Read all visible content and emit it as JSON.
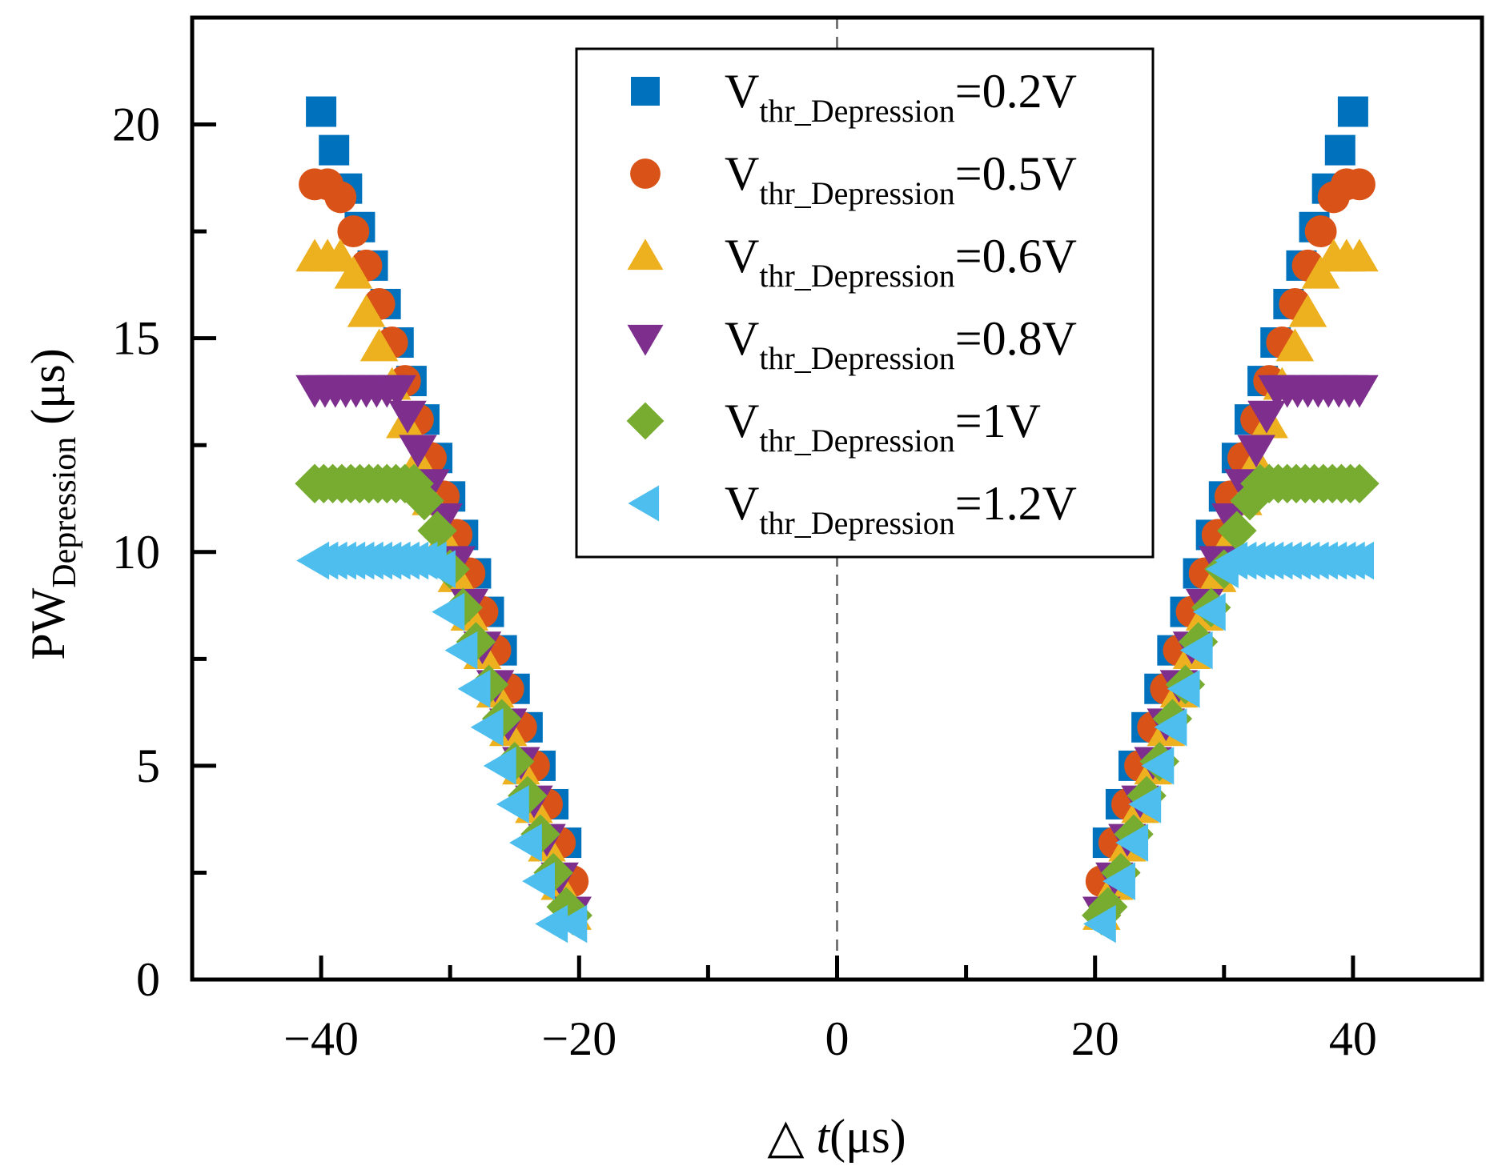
{
  "chart_data": {
    "type": "scatter",
    "title": "",
    "xlabel": "△ t(μs)",
    "xlabel_parts": {
      "prefix": "△ ",
      "italic": "t",
      "suffix": "(μs)"
    },
    "ylabel": "PW_Depression (μs)",
    "ylabel_parts": {
      "main": "PW",
      "sub": "Depression",
      "unit": " (μs)"
    },
    "xlim": [
      -50,
      50
    ],
    "ylim": [
      0,
      22.5
    ],
    "xticks": [
      -40,
      -20,
      0,
      20,
      40
    ],
    "xtick_labels": [
      "−40",
      "−20",
      "0",
      "20",
      "40"
    ],
    "yticks": [
      0,
      5,
      10,
      15,
      20
    ],
    "ytick_labels": [
      "0",
      "5",
      "10",
      "15",
      "20"
    ],
    "grid": false,
    "vline_x": 0,
    "legend_position": "top-center",
    "series": [
      {
        "name": "V_thr_Depression=0.2V",
        "label_main": "V",
        "label_sub": "thr_Depression",
        "label_value": "=0.2V",
        "marker": "square",
        "color": "#0072BD",
        "saturation": 20.3,
        "x": [
          -40,
          -39,
          -38,
          -37,
          -36,
          -35,
          -34,
          -33,
          -32,
          -31,
          -30,
          -29,
          -28,
          -27,
          -26,
          -25,
          -24,
          -23,
          -22,
          -21,
          21,
          22,
          23,
          24,
          25,
          26,
          27,
          28,
          29,
          30,
          31,
          32,
          33,
          34,
          35,
          36,
          37,
          38,
          39,
          40
        ],
        "y": [
          20.3,
          19.4,
          18.5,
          17.6,
          16.7,
          15.8,
          14.9,
          14.0,
          13.1,
          12.2,
          11.3,
          10.4,
          9.5,
          8.6,
          7.7,
          6.8,
          5.9,
          5.0,
          4.1,
          3.2,
          3.2,
          4.1,
          5.0,
          5.9,
          6.8,
          7.7,
          8.6,
          9.5,
          10.4,
          11.3,
          12.2,
          13.1,
          14.0,
          14.9,
          15.8,
          16.7,
          17.6,
          18.5,
          19.4,
          20.3
        ]
      },
      {
        "name": "V_thr_Depression=0.5V",
        "label_main": "V",
        "label_sub": "thr_Depression",
        "label_value": "=0.5V",
        "marker": "circle",
        "color": "#D95319",
        "saturation": 18.6,
        "x": [
          -40.5,
          -39.5,
          -38.5,
          -37.5,
          -36.5,
          -35.5,
          -34.5,
          -33.5,
          -32.5,
          -31.5,
          -30.5,
          -29.5,
          -28.5,
          -27.5,
          -26.5,
          -25.5,
          -24.5,
          -23.5,
          -22.5,
          -21.5,
          -20.5,
          20.5,
          21.5,
          22.5,
          23.5,
          24.5,
          25.5,
          26.5,
          27.5,
          28.5,
          29.5,
          30.5,
          31.5,
          32.5,
          33.5,
          34.5,
          35.5,
          36.5,
          37.5,
          38.5,
          39.5,
          40.5
        ],
        "y": [
          18.6,
          18.6,
          18.3,
          17.5,
          16.7,
          15.8,
          14.9,
          14.0,
          13.1,
          12.2,
          11.3,
          10.4,
          9.5,
          8.6,
          7.7,
          6.8,
          5.9,
          5.0,
          4.1,
          3.2,
          2.3,
          2.3,
          3.2,
          4.1,
          5.0,
          5.9,
          6.8,
          7.7,
          8.6,
          9.5,
          10.4,
          11.3,
          12.2,
          13.1,
          14.0,
          14.9,
          15.8,
          16.7,
          17.5,
          18.3,
          18.6,
          18.6
        ]
      },
      {
        "name": "V_thr_Depression=0.6V",
        "label_main": "V",
        "label_sub": "thr_Depression",
        "label_value": "=0.6V",
        "marker": "triangle-up",
        "color": "#EDB120",
        "saturation": 16.9,
        "x": [
          -40.5,
          -39.5,
          -38.5,
          -37.5,
          -36.5,
          -35.5,
          -34.5,
          -33.5,
          -32.5,
          -31.5,
          -30.5,
          -29.5,
          -28.5,
          -27.5,
          -26.5,
          -25.5,
          -24.5,
          -23.5,
          -22.5,
          -21.5,
          -20.5,
          20.5,
          21.5,
          22.5,
          23.5,
          24.5,
          25.5,
          26.5,
          27.5,
          28.5,
          29.5,
          30.5,
          31.5,
          32.5,
          33.5,
          34.5,
          35.5,
          36.5,
          37.5,
          38.5,
          39.5,
          40.5
        ],
        "y": [
          16.9,
          16.9,
          16.9,
          16.5,
          15.6,
          14.8,
          13.9,
          13.0,
          12.1,
          11.2,
          10.3,
          9.4,
          8.5,
          7.6,
          6.7,
          5.8,
          4.9,
          4.0,
          3.1,
          2.2,
          1.5,
          1.5,
          2.2,
          3.1,
          4.0,
          4.9,
          5.8,
          6.7,
          7.6,
          8.5,
          9.4,
          10.3,
          11.2,
          12.1,
          13.0,
          13.9,
          14.8,
          15.6,
          16.5,
          16.9,
          16.9,
          16.9
        ]
      },
      {
        "name": "V_thr_Depression=0.8V",
        "label_main": "V",
        "label_sub": "thr_Depression",
        "label_value": "=0.8V",
        "marker": "triangle-down",
        "color": "#7E2F8E",
        "saturation": 13.8,
        "x": [
          -40.5,
          -39.7,
          -38.9,
          -38.1,
          -37.3,
          -36.5,
          -35.7,
          -34.9,
          -34.1,
          -33.3,
          -32.5,
          -31.5,
          -30.5,
          -29.5,
          -28.5,
          -27.5,
          -26.5,
          -25.5,
          -24.5,
          -23.5,
          -22.5,
          -21.5,
          -20.5,
          20.5,
          21.5,
          22.5,
          23.5,
          24.5,
          25.5,
          26.5,
          27.5,
          28.5,
          29.5,
          30.5,
          31.5,
          32.5,
          33.3,
          34.1,
          34.9,
          35.7,
          36.5,
          37.3,
          38.1,
          38.9,
          39.7,
          40.5
        ],
        "y": [
          13.8,
          13.8,
          13.8,
          13.8,
          13.8,
          13.8,
          13.8,
          13.8,
          13.8,
          13.2,
          12.4,
          11.6,
          10.8,
          9.8,
          8.8,
          7.8,
          6.9,
          6.0,
          5.1,
          4.2,
          3.3,
          2.4,
          1.6,
          1.6,
          2.4,
          3.3,
          4.2,
          5.1,
          6.0,
          6.9,
          7.8,
          8.8,
          9.8,
          10.8,
          11.6,
          12.4,
          13.2,
          13.8,
          13.8,
          13.8,
          13.8,
          13.8,
          13.8,
          13.8,
          13.8,
          13.8
        ]
      },
      {
        "name": "V_thr_Depression=1V",
        "label_main": "V",
        "label_sub": "thr_Depression",
        "label_value": "=1V",
        "marker": "diamond",
        "color": "#77AC30",
        "saturation": 11.6,
        "x": [
          -40.5,
          -39.8,
          -39.1,
          -38.4,
          -37.7,
          -37.0,
          -36.3,
          -35.6,
          -34.9,
          -34.2,
          -33.5,
          -32.8,
          -32.0,
          -31.0,
          -30.0,
          -29.0,
          -28.0,
          -27.0,
          -26.0,
          -25.0,
          -24.0,
          -23.0,
          -22.0,
          -21.0,
          -20.5,
          20.5,
          21.0,
          22.0,
          23.0,
          24.0,
          25.0,
          26.0,
          27.0,
          28.0,
          29.0,
          30.0,
          31.0,
          32.0,
          32.8,
          33.5,
          34.2,
          34.9,
          35.6,
          36.3,
          37.0,
          37.7,
          38.4,
          39.1,
          39.8,
          40.5
        ],
        "y": [
          11.6,
          11.6,
          11.6,
          11.6,
          11.6,
          11.6,
          11.6,
          11.6,
          11.6,
          11.6,
          11.6,
          11.6,
          11.2,
          10.5,
          9.6,
          8.7,
          7.9,
          6.9,
          6.1,
          5.1,
          4.3,
          3.4,
          2.5,
          1.7,
          1.5,
          1.5,
          1.7,
          2.5,
          3.4,
          4.3,
          5.1,
          6.1,
          6.9,
          7.9,
          8.7,
          9.6,
          10.5,
          11.2,
          11.6,
          11.6,
          11.6,
          11.6,
          11.6,
          11.6,
          11.6,
          11.6,
          11.6,
          11.6,
          11.6,
          11.6
        ]
      },
      {
        "name": "V_thr_Depression=1.2V",
        "label_main": "V",
        "label_sub": "thr_Depression",
        "label_value": "=1.2V",
        "marker": "triangle-left",
        "color": "#4DBEEE",
        "saturation": 9.8,
        "x": [
          -40.5,
          -39.8,
          -39.1,
          -38.4,
          -37.7,
          -37.0,
          -36.3,
          -35.6,
          -34.9,
          -34.2,
          -33.5,
          -32.8,
          -32.1,
          -31.4,
          -30.7,
          -30.0,
          -29.0,
          -28.0,
          -27.0,
          -26.0,
          -25.0,
          -24.0,
          -23.0,
          -22.0,
          -20.5,
          20.5,
          22.0,
          23.0,
          24.0,
          25.0,
          26.0,
          27.0,
          28.0,
          29.0,
          30.0,
          30.7,
          31.4,
          32.1,
          32.8,
          33.5,
          34.2,
          34.9,
          35.6,
          36.3,
          37.0,
          37.7,
          38.4,
          39.1,
          39.8,
          40.5
        ],
        "y": [
          9.8,
          9.8,
          9.8,
          9.8,
          9.8,
          9.8,
          9.8,
          9.8,
          9.8,
          9.8,
          9.8,
          9.8,
          9.8,
          9.8,
          9.6,
          8.6,
          7.7,
          6.8,
          5.9,
          5.0,
          4.1,
          3.2,
          2.3,
          1.3,
          1.3,
          1.3,
          2.3,
          3.2,
          4.1,
          5.0,
          5.9,
          6.8,
          7.7,
          8.6,
          9.6,
          9.8,
          9.8,
          9.8,
          9.8,
          9.8,
          9.8,
          9.8,
          9.8,
          9.8,
          9.8,
          9.8,
          9.8,
          9.8,
          9.8,
          9.8
        ]
      }
    ]
  }
}
